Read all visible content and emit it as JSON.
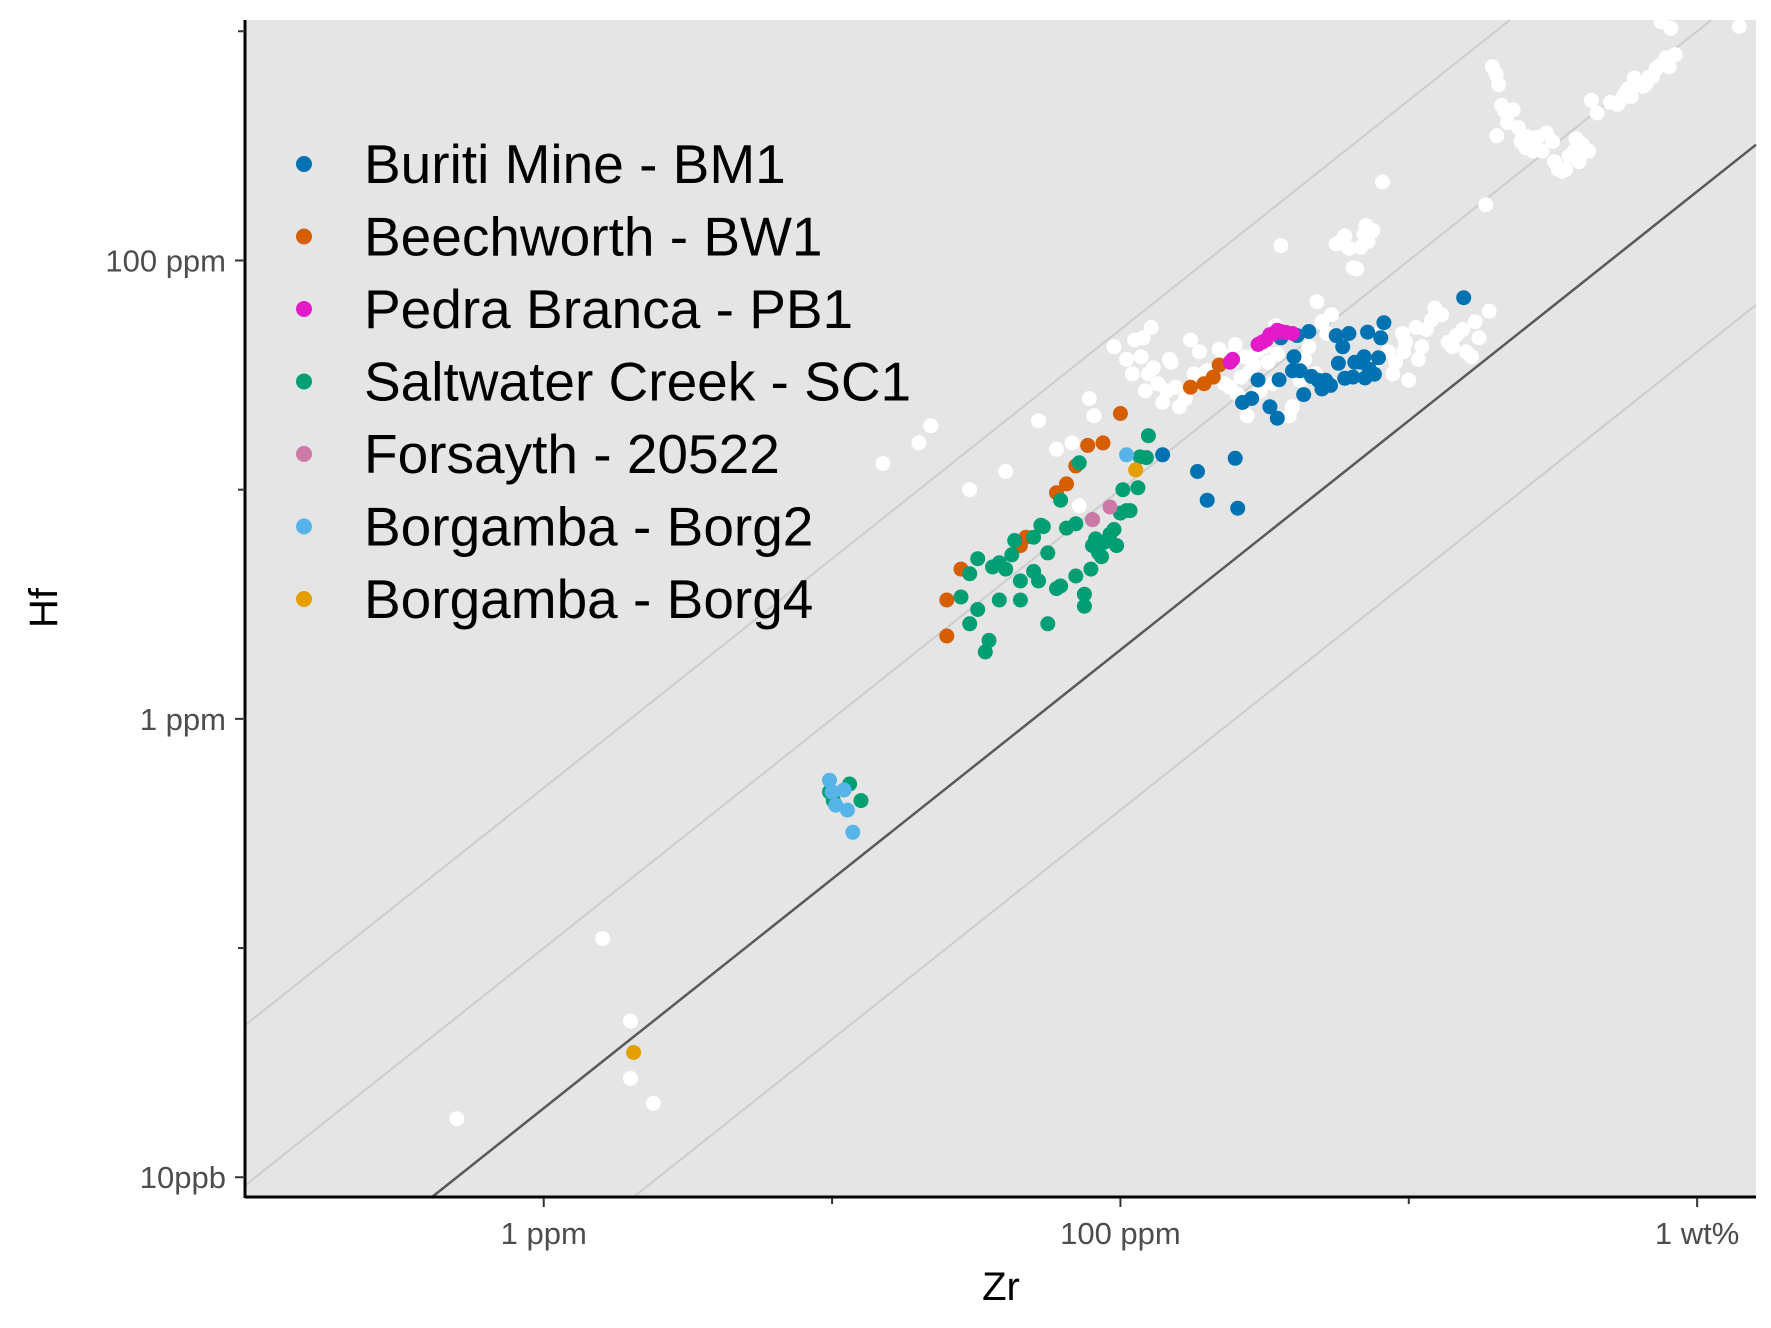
{
  "chart_data": {
    "type": "scatter",
    "title": "",
    "xlabel": "Zr",
    "ylabel": "Hf",
    "x_scale": "log10",
    "y_scale": "log10",
    "x_units": "ppm",
    "y_units": "ppm",
    "xlim": [
      0.0928,
      16000
    ],
    "ylim": [
      0.0082,
      1120
    ],
    "grid": false,
    "background": "#e5e5e5",
    "legend_position": "top-left",
    "x_ticks": [
      {
        "value": 1,
        "label": "1 ppm"
      },
      {
        "value": 100,
        "label": "100 ppm"
      },
      {
        "value": 10000,
        "label": "1 wt%"
      }
    ],
    "x_minor_ticks": [
      10,
      1000
    ],
    "y_ticks": [
      {
        "value": 0.01,
        "label": "10ppb"
      },
      {
        "value": 1,
        "label": "1 ppm"
      },
      {
        "value": 100,
        "label": "100 ppm"
      }
    ],
    "y_minor_ticks": [
      0.1,
      10,
      1000
    ],
    "reference_lines": [
      {
        "hf_zr_ratio": 0.5,
        "color": "#cccccc"
      },
      {
        "hf_zr_ratio": 0.1,
        "color": "#cccccc"
      },
      {
        "hf_zr_ratio": 0.02,
        "color": "#595959"
      },
      {
        "hf_zr_ratio": 0.004,
        "color": "#cccccc"
      }
    ],
    "series": [
      {
        "name": "",
        "color": "#ffffff",
        "points": [
          [
            0.5,
            0.018
          ],
          [
            1.6,
            0.11
          ],
          [
            2.0,
            0.027
          ],
          [
            2.4,
            0.021
          ],
          [
            2.0,
            0.048
          ],
          [
            15,
            13
          ],
          [
            20,
            16
          ],
          [
            22,
            19
          ],
          [
            30,
            10
          ],
          [
            40,
            12
          ],
          [
            52,
            20
          ],
          [
            60,
            15
          ],
          [
            68,
            16
          ],
          [
            72,
            8.5
          ],
          [
            78,
            25
          ],
          [
            81,
            21
          ],
          [
            95,
            42
          ],
          [
            105,
            37
          ],
          [
            110,
            32
          ],
          [
            112,
            45
          ],
          [
            118,
            38
          ],
          [
            120,
            46
          ],
          [
            122,
            27
          ],
          [
            125,
            32
          ],
          [
            128,
            51
          ],
          [
            130,
            34
          ],
          [
            135,
            29
          ],
          [
            140,
            24
          ],
          [
            145,
            27
          ],
          [
            148,
            37
          ],
          [
            150,
            36
          ],
          [
            155,
            28
          ],
          [
            160,
            23
          ],
          [
            168,
            25
          ],
          [
            175,
            45
          ],
          [
            180,
            32
          ],
          [
            188,
            40
          ],
          [
            200,
            33
          ],
          [
            210,
            31
          ],
          [
            220,
            41
          ],
          [
            225,
            36
          ],
          [
            230,
            29
          ],
          [
            235,
            38
          ],
          [
            240,
            28
          ],
          [
            245,
            36
          ],
          [
            250,
            43
          ],
          [
            255,
            26
          ],
          [
            262,
            31
          ],
          [
            270,
            38
          ],
          [
            275,
            21
          ],
          [
            282,
            33
          ],
          [
            290,
            35
          ],
          [
            297,
            40
          ],
          [
            305,
            27
          ],
          [
            315,
            42
          ],
          [
            325,
            36
          ],
          [
            338,
            29
          ],
          [
            345,
            52
          ],
          [
            350,
            39
          ],
          [
            360,
            116
          ],
          [
            385,
            21
          ],
          [
            395,
            23
          ],
          [
            414,
            34
          ],
          [
            420,
            30
          ],
          [
            436,
            37
          ],
          [
            450,
            42
          ],
          [
            475,
            32
          ],
          [
            480,
            66
          ],
          [
            500,
            54
          ],
          [
            520,
            48
          ],
          [
            540,
            58
          ],
          [
            560,
            118
          ],
          [
            575,
            120
          ],
          [
            600,
            128
          ],
          [
            620,
            113
          ],
          [
            642,
            93
          ],
          [
            660,
            92
          ],
          [
            680,
            114
          ],
          [
            700,
            130
          ],
          [
            710,
            142
          ],
          [
            722,
            121
          ],
          [
            750,
            135
          ],
          [
            777,
            37
          ],
          [
            800,
            49
          ],
          [
            810,
            220
          ],
          [
            850,
            40
          ],
          [
            880,
            32
          ],
          [
            900,
            36
          ],
          [
            950,
            48
          ],
          [
            960,
            40
          ],
          [
            975,
            44
          ],
          [
            1000,
            30
          ],
          [
            1060,
            51
          ],
          [
            1080,
            37
          ],
          [
            1110,
            42
          ],
          [
            1150,
            50
          ],
          [
            1200,
            55
          ],
          [
            1232,
            62
          ],
          [
            1300,
            58
          ],
          [
            1370,
            44
          ],
          [
            1415,
            42
          ],
          [
            1460,
            47
          ],
          [
            1540,
            50
          ],
          [
            1580,
            40
          ],
          [
            1650,
            38
          ],
          [
            1700,
            54
          ],
          [
            1750,
            46
          ],
          [
            1850,
            175
          ],
          [
            1900,
            60
          ],
          [
            1950,
            700
          ],
          [
            2010,
            650
          ],
          [
            2050,
            585
          ],
          [
            2100,
            475
          ],
          [
            2150,
            450
          ],
          [
            2200,
            400
          ],
          [
            2300,
            455
          ],
          [
            2400,
            380
          ],
          [
            2450,
            330
          ],
          [
            2500,
            350
          ],
          [
            2550,
            310
          ],
          [
            2600,
            345
          ],
          [
            2700,
            300
          ],
          [
            2800,
            345
          ],
          [
            2900,
            300
          ],
          [
            3000,
            360
          ],
          [
            3150,
            330
          ],
          [
            3200,
            270
          ],
          [
            3300,
            250
          ],
          [
            3400,
            245
          ],
          [
            3500,
            250
          ],
          [
            3600,
            285
          ],
          [
            3750,
            300
          ],
          [
            3800,
            340
          ],
          [
            3900,
            270
          ],
          [
            4000,
            320
          ],
          [
            4200,
            300
          ],
          [
            4300,
            500
          ],
          [
            4500,
            440
          ],
          [
            5000,
            490
          ],
          [
            5300,
            480
          ],
          [
            5500,
            510
          ],
          [
            5600,
            530
          ],
          [
            5750,
            560
          ],
          [
            5900,
            520
          ],
          [
            6050,
            625
          ],
          [
            6100,
            580
          ],
          [
            6300,
            600
          ],
          [
            6500,
            575
          ],
          [
            6650,
            590
          ],
          [
            6800,
            630
          ],
          [
            7000,
            635
          ],
          [
            7200,
            685
          ],
          [
            7400,
            710
          ],
          [
            7800,
            765
          ],
          [
            8000,
            700
          ],
          [
            8400,
            790
          ],
          [
            14000,
            1050
          ],
          [
            8100,
            1030
          ],
          [
            7500,
            1100
          ],
          [
            2020,
            350
          ]
        ]
      },
      {
        "name": "Buriti Mine - BM1",
        "color": "#0072b2",
        "points": [
          [
            140,
            14.2
          ],
          [
            185,
            12.0
          ],
          [
            200,
            9.0
          ],
          [
            250,
            13.7
          ],
          [
            255,
            8.3
          ],
          [
            265,
            24.0
          ],
          [
            285,
            25.0
          ],
          [
            300,
            30.1
          ],
          [
            330,
            23.0
          ],
          [
            350,
            20.5
          ],
          [
            355,
            30.2
          ],
          [
            360,
            46.0
          ],
          [
            395,
            33.0
          ],
          [
            400,
            38.0
          ],
          [
            410,
            47.0
          ],
          [
            420,
            33.0
          ],
          [
            432,
            26.0
          ],
          [
            450,
            49.0
          ],
          [
            460,
            31.2
          ],
          [
            485,
            30.0
          ],
          [
            500,
            27.5
          ],
          [
            515,
            30.0
          ],
          [
            535,
            28.5
          ],
          [
            560,
            47.0
          ],
          [
            570,
            35.6
          ],
          [
            590,
            42.0
          ],
          [
            600,
            30.6
          ],
          [
            620,
            48.0
          ],
          [
            640,
            31.0
          ],
          [
            650,
            36.0
          ],
          [
            680,
            36.0
          ],
          [
            700,
            38.0
          ],
          [
            705,
            30.7
          ],
          [
            720,
            48.7
          ],
          [
            730,
            33.5
          ],
          [
            760,
            31.9
          ],
          [
            785,
            37.6
          ],
          [
            800,
            46.0
          ],
          [
            820,
            53.5
          ],
          [
            1550,
            68.8
          ]
        ]
      },
      {
        "name": "Beechworth - BW1",
        "color": "#d55e00",
        "points": [
          [
            25,
            2.3
          ],
          [
            25,
            3.3
          ],
          [
            28,
            4.5
          ],
          [
            45,
            5.7
          ],
          [
            47,
            6.2
          ],
          [
            60,
            9.7
          ],
          [
            65,
            10.6
          ],
          [
            70,
            12.7
          ],
          [
            77,
            15.6
          ],
          [
            87,
            16.0
          ],
          [
            100,
            21.5
          ],
          [
            175,
            28.0
          ],
          [
            195,
            29.0
          ],
          [
            210,
            31.0
          ],
          [
            220,
            35.0
          ]
        ]
      },
      {
        "name": "Pedra Branca - PB1",
        "color": "#e41ac8",
        "points": [
          [
            240,
            36.0
          ],
          [
            245,
            37.0
          ],
          [
            300,
            43.0
          ],
          [
            310,
            44.0
          ],
          [
            320,
            45.0
          ],
          [
            330,
            47.5
          ],
          [
            340,
            48.0
          ],
          [
            350,
            49.6
          ],
          [
            360,
            49.0
          ],
          [
            375,
            48.5
          ],
          [
            395,
            48.0
          ]
        ]
      },
      {
        "name": "Saltwater Creek - SC1",
        "color": "#009e73",
        "points": [
          [
            9.8,
            0.48
          ],
          [
            10.1,
            0.44
          ],
          [
            11.5,
            0.52
          ],
          [
            12.6,
            0.44
          ],
          [
            28,
            3.4
          ],
          [
            30,
            4.3
          ],
          [
            30,
            2.6
          ],
          [
            32,
            5.0
          ],
          [
            32,
            3.0
          ],
          [
            34,
            1.96
          ],
          [
            35,
            2.2
          ],
          [
            36,
            4.6
          ],
          [
            38,
            3.3
          ],
          [
            38,
            4.8
          ],
          [
            40,
            4.5
          ],
          [
            42,
            5.2
          ],
          [
            43,
            6.0
          ],
          [
            45,
            3.3
          ],
          [
            45,
            4.0
          ],
          [
            50,
            4.4
          ],
          [
            50,
            6.2
          ],
          [
            52,
            4.0
          ],
          [
            53,
            7.0
          ],
          [
            54,
            6.9
          ],
          [
            56,
            5.3
          ],
          [
            56,
            2.6
          ],
          [
            60,
            3.7
          ],
          [
            62,
            9.0
          ],
          [
            62,
            3.8
          ],
          [
            65,
            6.8
          ],
          [
            70,
            4.2
          ],
          [
            70,
            7.1
          ],
          [
            72,
            13.1
          ],
          [
            75,
            3.5
          ],
          [
            75,
            3.1
          ],
          [
            79,
            4.5
          ],
          [
            80,
            5.7
          ],
          [
            80,
            7.4
          ],
          [
            82,
            6.1
          ],
          [
            84,
            5.3
          ],
          [
            86,
            5.1
          ],
          [
            88,
            5.9
          ],
          [
            92,
            6.4
          ],
          [
            95,
            6.7
          ],
          [
            97,
            5.7
          ],
          [
            100,
            7.9
          ],
          [
            102,
            10.0
          ],
          [
            105,
            8.1
          ],
          [
            108,
            8.1
          ],
          [
            115,
            10.2
          ],
          [
            117,
            13.9
          ],
          [
            123,
            13.8
          ],
          [
            125,
            17.2
          ]
        ]
      },
      {
        "name": "Forsayth - 20522",
        "color": "#cc79a7",
        "points": [
          [
            80,
            7.4
          ],
          [
            92,
            8.4
          ]
        ]
      },
      {
        "name": "Borgamba - Borg2",
        "color": "#56b4e9",
        "points": [
          [
            9.8,
            0.54
          ],
          [
            10,
            0.48
          ],
          [
            10.3,
            0.42
          ],
          [
            11,
            0.49
          ],
          [
            11.3,
            0.4
          ],
          [
            11.8,
            0.32
          ],
          [
            105,
            14.2
          ]
        ]
      },
      {
        "name": "Borgamba - Borg4",
        "color": "#e69f00",
        "points": [
          [
            2.05,
            0.035
          ],
          [
            113,
            12.2
          ]
        ]
      }
    ]
  }
}
